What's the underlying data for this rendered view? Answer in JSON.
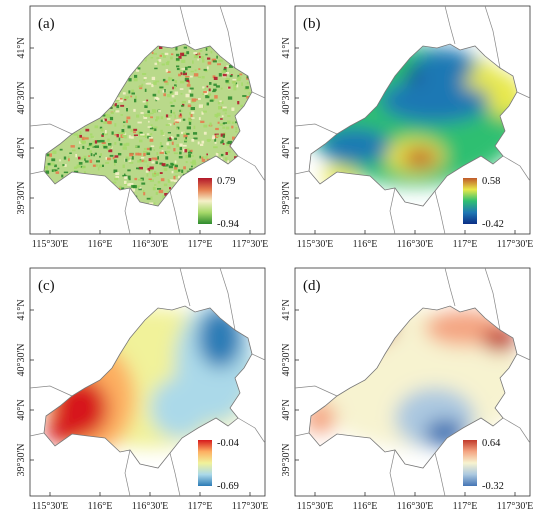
{
  "figure": {
    "panels": [
      {
        "label": "(a)",
        "scheme": "green-red",
        "legend": {
          "max": "0.79",
          "min": "-0.94"
        },
        "lat_ticks": [
          "41°N",
          "40°30'N",
          "40°N",
          "39°30'N"
        ],
        "lon_ticks": [
          "115°30'E",
          "116°E",
          "116°30'E",
          "117°E",
          "117°30'E"
        ]
      },
      {
        "label": "(b)",
        "scheme": "blue-green-yellow-brown",
        "legend": {
          "max": "0.58",
          "min": "-0.42"
        },
        "lat_ticks": [
          "41°N",
          "40°30'N",
          "40°N",
          "39°30'N"
        ],
        "lon_ticks": [
          "115°30'E",
          "116°E",
          "116°30'E",
          "117°E",
          "117°30'E"
        ]
      },
      {
        "label": "(c)",
        "scheme": "blue-yellow-red",
        "legend": {
          "max": "-0.04",
          "min": "-0.69"
        },
        "lat_ticks": [
          "41°N",
          "40°30'N",
          "40°N",
          "39°30'N"
        ],
        "lon_ticks": [
          "115°30'E",
          "116°E",
          "116°30'E",
          "117°E",
          "117°30'E"
        ]
      },
      {
        "label": "(d)",
        "scheme": "blue-cream-red",
        "legend": {
          "max": "0.64",
          "min": "-0.32"
        },
        "lat_ticks": [
          "41°N",
          "40°30'N",
          "40°N",
          "39°30'N"
        ],
        "lon_ticks": [
          "115°30'E",
          "116°E",
          "116°30'E",
          "117°E",
          "117°30'E"
        ]
      }
    ],
    "colors": {
      "green-red": [
        "#2e8b2e",
        "#a6d96a",
        "#f5f0c8",
        "#e57c4e",
        "#b2182b"
      ],
      "blue-green-yellow-brown": [
        "#0b2e86",
        "#1f78b4",
        "#2fbf71",
        "#e8e84a",
        "#c05a2a"
      ],
      "blue-yellow-red": [
        "#2c7bb6",
        "#abd9e9",
        "#f1f29a",
        "#fdae61",
        "#d7191c"
      ],
      "blue-cream-red": [
        "#4575b4",
        "#abc8e0",
        "#f7f3d0",
        "#f4a582",
        "#c0392b"
      ]
    }
  }
}
